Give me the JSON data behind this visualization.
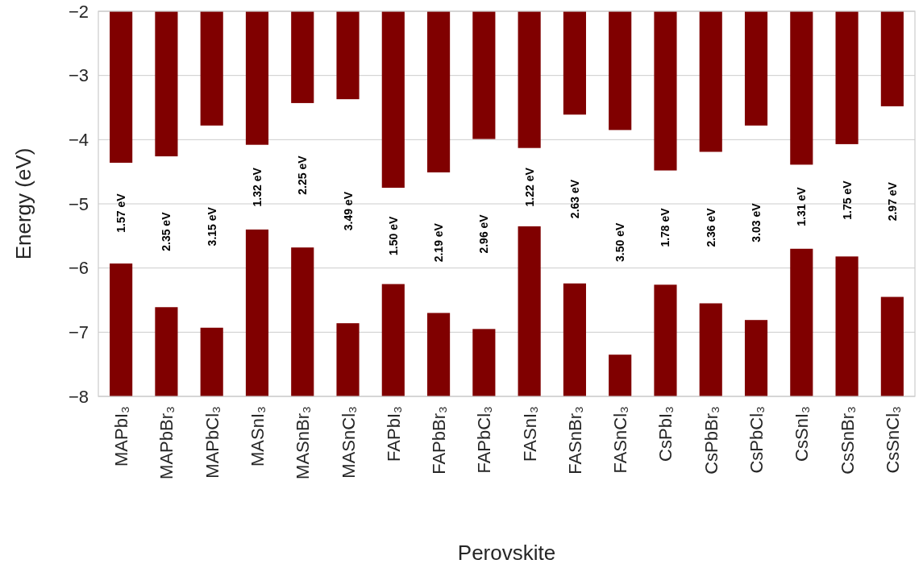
{
  "chart_data": {
    "type": "bar",
    "xlabel": "Perovskite",
    "ylabel": "Energy (eV)",
    "categories": [
      "MAPbI₃",
      "MAPbBr₃",
      "MAPbCl₃",
      "MASnI₃",
      "MASnBr₃",
      "MASnCl₃",
      "FAPbI₃",
      "FAPbBr₃",
      "FAPbCl₃",
      "FASnI₃",
      "FASnBr₃",
      "FASnCl₃",
      "CsPbI₃",
      "CsPbBr₃",
      "CsPbCl₃",
      "CsSnI₃",
      "CsSnBr₃",
      "CsSnCl₃"
    ],
    "series": [
      {
        "color": "#800000",
        "base": [
          -2,
          -2,
          -2,
          -2,
          -2,
          -2,
          -2,
          -2,
          -2,
          -2,
          -2,
          -2,
          -2,
          -2,
          -2,
          -2,
          -2,
          -2
        ],
        "values": [
          -2.36,
          -2.26,
          -1.78,
          -2.08,
          -1.43,
          -1.37,
          -2.75,
          -2.51,
          -1.99,
          -2.13,
          -1.61,
          -1.85,
          -2.48,
          -2.19,
          -1.78,
          -2.39,
          -2.07,
          -1.48
        ]
      },
      {
        "color": "#800000",
        "base": [
          -8,
          -8,
          -8,
          -8,
          -8,
          -8,
          -8,
          -8,
          -8,
          -8,
          -8,
          -8,
          -8,
          -8,
          -8,
          -8,
          -8,
          -8
        ],
        "values": [
          2.07,
          1.39,
          1.07,
          2.6,
          2.32,
          1.14,
          1.75,
          1.3,
          1.05,
          2.65,
          1.76,
          0.65,
          1.74,
          1.45,
          1.19,
          2.3,
          2.18,
          1.55
        ]
      }
    ],
    "ylim": [
      -8,
      -2
    ],
    "yticks": [
      {
        "value": -8,
        "label": "−8"
      },
      {
        "value": -7,
        "label": "−7"
      },
      {
        "value": -6,
        "label": "−6"
      },
      {
        "value": -5,
        "label": "−5"
      },
      {
        "value": -4,
        "label": "−4"
      },
      {
        "value": -3,
        "label": "−3"
      },
      {
        "value": -2,
        "label": "−2"
      }
    ],
    "grid": "y",
    "annotations": [
      "1.57 eV",
      "2.35 eV",
      "3.15 eV",
      "1.32 eV",
      "2.25 eV",
      "3.49 eV",
      "1.50 eV",
      "2.19 eV",
      "2.96 eV",
      "1.22 eV",
      "2.63 eV",
      "3.50 eV",
      "1.78 eV",
      "2.36 eV",
      "3.03 eV",
      "1.31 eV",
      "1.75 eV",
      "2.97 eV"
    ]
  }
}
